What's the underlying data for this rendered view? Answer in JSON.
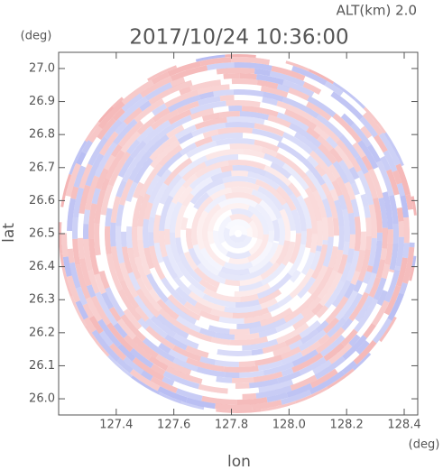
{
  "chart_data": {
    "type": "radar-ppi",
    "title": "2017/10/24 10:36:00",
    "subtitle": "ALT(km) 2.0",
    "x_label": "lon",
    "x_unit": "(deg)",
    "y_label": "lat",
    "y_unit": "(deg)",
    "xlim": [
      127.2,
      128.447
    ],
    "ylim": [
      25.951,
      27.049
    ],
    "xticks": [
      127.4,
      127.6,
      127.8,
      {
        "value": 128.0,
        "label": "128.0"
      },
      128.2,
      128.4
    ],
    "yticks": [
      {
        "value": 26.0,
        "label": "26.0"
      },
      26.1,
      26.2,
      26.3,
      26.4,
      26.5,
      26.6,
      26.7,
      26.8,
      26.9,
      {
        "value": 27.0,
        "label": "27.0"
      }
    ]
  }
}
